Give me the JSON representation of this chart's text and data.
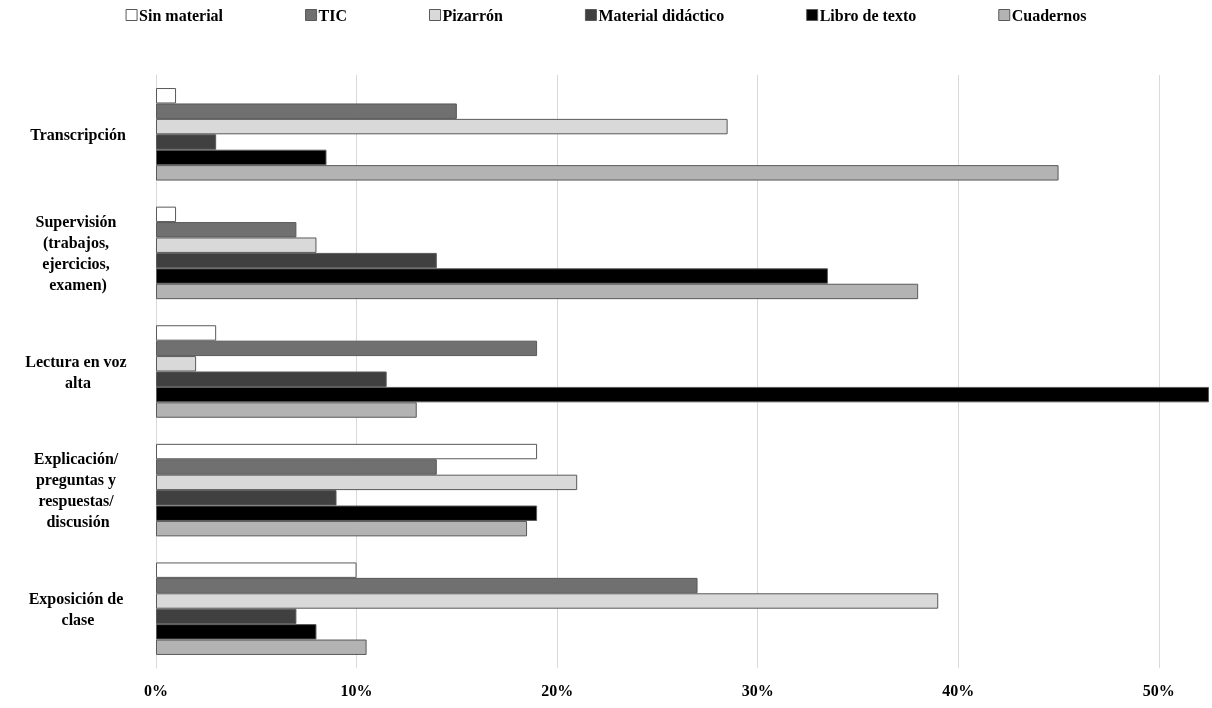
{
  "chart_data": {
    "type": "bar",
    "orientation": "horizontal",
    "categories": [
      "Transcripción",
      "Supervisión (trabajos, ejercicios, examen)",
      "Lectura en voz alta",
      "Explicación/ preguntas y respuestas/ discusión",
      "Exposición de clase"
    ],
    "series": [
      {
        "name": "Sin material",
        "color": "#ffffff",
        "values": [
          1,
          1,
          3,
          19,
          10
        ]
      },
      {
        "name": "TIC",
        "color": "#707070",
        "values": [
          15,
          7,
          19,
          14,
          27
        ]
      },
      {
        "name": "Pizarrón",
        "color": "#d9d9d9",
        "values": [
          28.5,
          8,
          2,
          21,
          39
        ]
      },
      {
        "name": "Material didáctico",
        "color": "#404040",
        "values": [
          3,
          14,
          11.5,
          9,
          7
        ]
      },
      {
        "name": "Libro de texto",
        "color": "#000000",
        "values": [
          8.5,
          33.5,
          52.5,
          19,
          8
        ]
      },
      {
        "name": "Cuadernos",
        "color": "#b3b3b3",
        "values": [
          45,
          38,
          13,
          18.5,
          10.5
        ]
      }
    ],
    "xlim": [
      0,
      52.5
    ],
    "xticks": [
      {
        "value": 0,
        "label": "0%"
      },
      {
        "value": 10,
        "label": "10%"
      },
      {
        "value": 20,
        "label": "20%"
      },
      {
        "value": 30,
        "label": "30%"
      },
      {
        "value": 40,
        "label": "40%"
      },
      {
        "value": 50,
        "label": "50%"
      }
    ],
    "grid": "x",
    "legend": "top"
  }
}
